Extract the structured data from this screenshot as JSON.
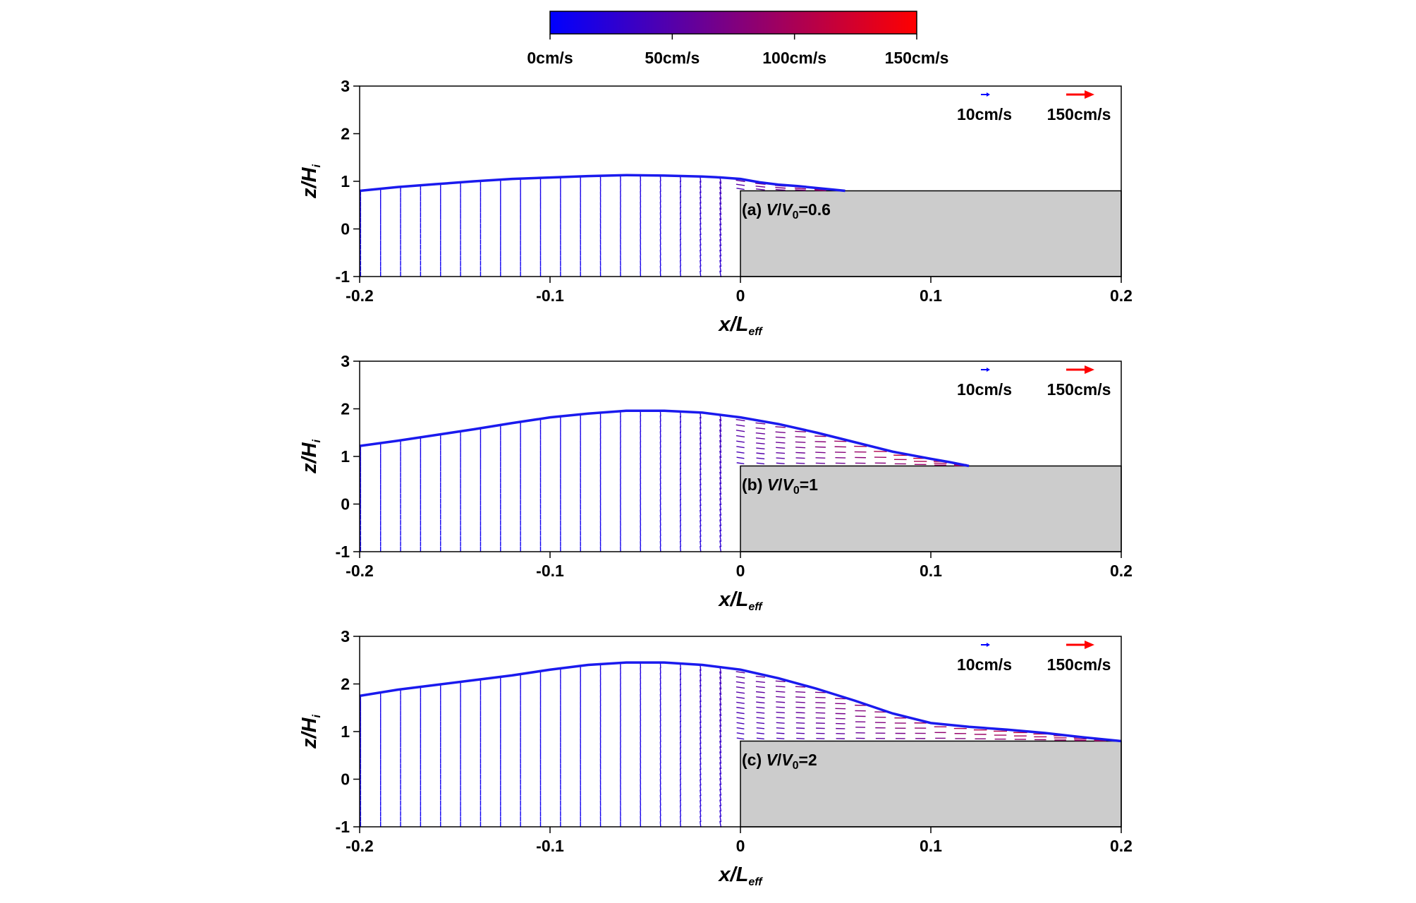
{
  "colorbar": {
    "colors": [
      "#0000ff",
      "#ff0000"
    ],
    "ticks": [
      {
        "value": 0,
        "label": "0cm/s"
      },
      {
        "value": 50,
        "label": "50cm/s"
      },
      {
        "value": 100,
        "label": "100cm/s"
      },
      {
        "value": 150,
        "label": "150cm/s"
      }
    ],
    "range": [
      0,
      150
    ]
  },
  "legend": {
    "small_label": "10cm/s",
    "large_label": "150cm/s"
  },
  "chart_data": [
    {
      "type": "quiver",
      "annotation": {
        "prefix": "(a) ",
        "v": "V",
        "slash": "/",
        "v0": "V",
        "v0_sub": "0",
        "eq": "=0.6"
      },
      "xlabel": {
        "main": "x/L",
        "sub": "eff"
      },
      "ylabel": {
        "main": "z/H",
        "sub": "i"
      },
      "xlim": [
        -0.2,
        0.2
      ],
      "ylim": [
        -1,
        3
      ],
      "x_ticks": [
        "-0.2",
        "-0.1",
        "0",
        "0.1",
        "0.2"
      ],
      "y_ticks": [
        "-1",
        "0",
        "1",
        "2",
        "3"
      ],
      "shelf": {
        "x": [
          0,
          0.2
        ],
        "z": [
          -1,
          0.8
        ]
      },
      "surface": {
        "x": [
          -0.2,
          -0.18,
          -0.16,
          -0.14,
          -0.12,
          -0.1,
          -0.08,
          -0.06,
          -0.04,
          -0.02,
          -0.01,
          0.0,
          0.01,
          0.02,
          0.03,
          0.04,
          0.05,
          0.055
        ],
        "z": [
          0.8,
          0.88,
          0.94,
          1.0,
          1.05,
          1.08,
          1.11,
          1.13,
          1.12,
          1.1,
          1.08,
          1.05,
          0.98,
          0.93,
          0.9,
          0.86,
          0.82,
          0.8
        ]
      }
    },
    {
      "type": "quiver",
      "annotation": {
        "prefix": "(b) ",
        "v": "V",
        "slash": "/",
        "v0": "V",
        "v0_sub": "0",
        "eq": "=1"
      },
      "xlabel": {
        "main": "x/L",
        "sub": "eff"
      },
      "ylabel": {
        "main": "z/H",
        "sub": "i"
      },
      "xlim": [
        -0.2,
        0.2
      ],
      "ylim": [
        -1,
        3
      ],
      "x_ticks": [
        "-0.2",
        "-0.1",
        "0",
        "0.1",
        "0.2"
      ],
      "y_ticks": [
        "-1",
        "0",
        "1",
        "2",
        "3"
      ],
      "shelf": {
        "x": [
          0,
          0.2
        ],
        "z": [
          -1,
          0.8
        ]
      },
      "surface": {
        "x": [
          -0.2,
          -0.18,
          -0.16,
          -0.14,
          -0.12,
          -0.1,
          -0.08,
          -0.06,
          -0.04,
          -0.02,
          0.0,
          0.02,
          0.04,
          0.06,
          0.08,
          0.1,
          0.11,
          0.12
        ],
        "z": [
          1.22,
          1.33,
          1.45,
          1.57,
          1.7,
          1.82,
          1.9,
          1.96,
          1.96,
          1.92,
          1.82,
          1.68,
          1.5,
          1.3,
          1.1,
          0.95,
          0.88,
          0.8
        ]
      }
    },
    {
      "type": "quiver",
      "annotation": {
        "prefix": "(c) ",
        "v": "V",
        "slash": "/",
        "v0": "V",
        "v0_sub": "0",
        "eq": "=2"
      },
      "xlabel": {
        "main": "x/L",
        "sub": "eff"
      },
      "ylabel": {
        "main": "z/H",
        "sub": "i"
      },
      "xlim": [
        -0.2,
        0.2
      ],
      "ylim": [
        -1,
        3
      ],
      "x_ticks": [
        "-0.2",
        "-0.1",
        "0",
        "0.1",
        "0.2"
      ],
      "y_ticks": [
        "-1",
        "0",
        "1",
        "2",
        "3"
      ],
      "shelf": {
        "x": [
          0,
          0.2
        ],
        "z": [
          -1,
          0.8
        ]
      },
      "surface": {
        "x": [
          -0.2,
          -0.18,
          -0.16,
          -0.14,
          -0.12,
          -0.1,
          -0.08,
          -0.06,
          -0.04,
          -0.02,
          0.0,
          0.02,
          0.04,
          0.06,
          0.08,
          0.1,
          0.12,
          0.14,
          0.16,
          0.18,
          0.2
        ],
        "z": [
          1.75,
          1.88,
          1.98,
          2.08,
          2.18,
          2.3,
          2.4,
          2.45,
          2.45,
          2.4,
          2.3,
          2.12,
          1.9,
          1.65,
          1.38,
          1.18,
          1.1,
          1.04,
          0.97,
          0.88,
          0.8
        ]
      }
    }
  ]
}
